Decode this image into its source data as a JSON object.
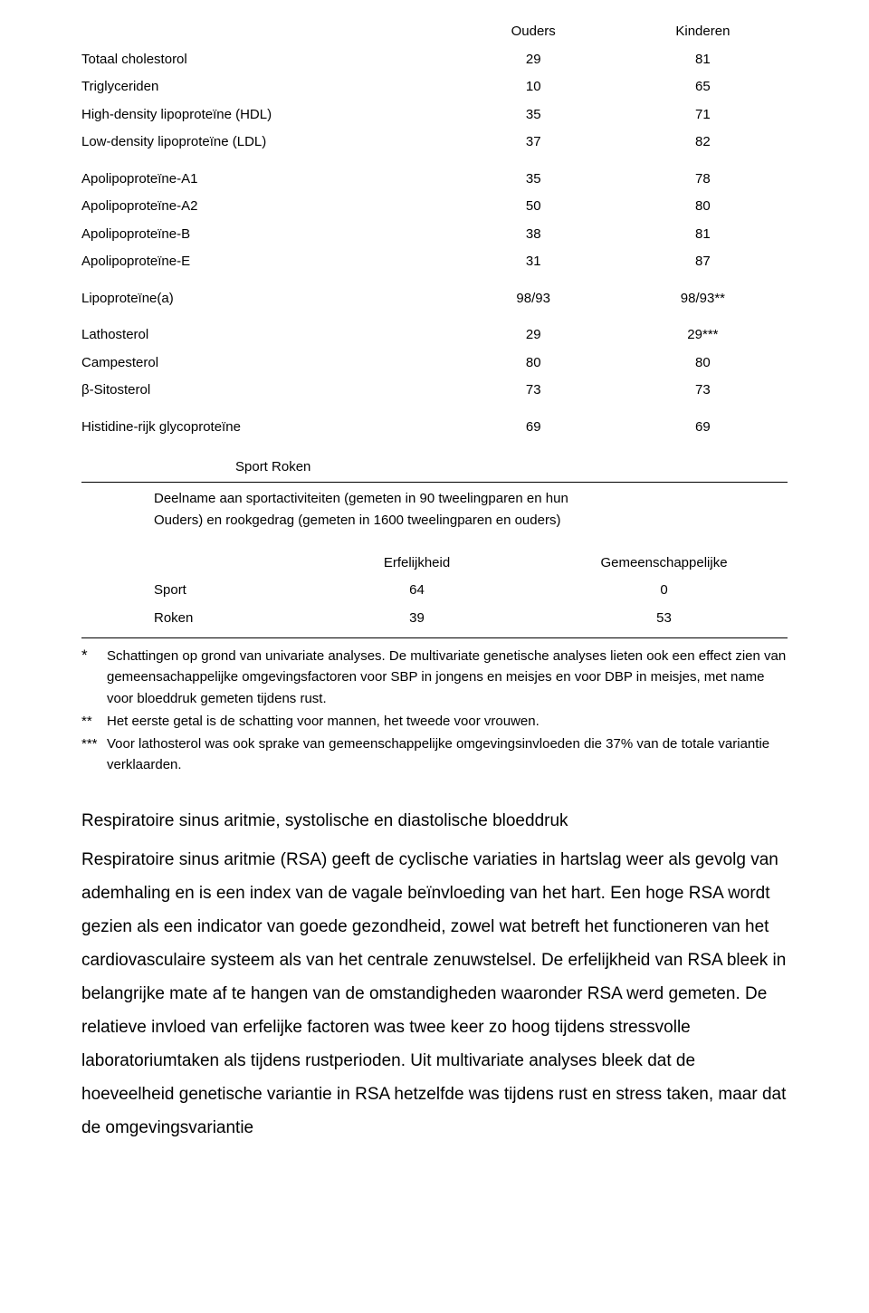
{
  "table1": {
    "headers": {
      "col1": "Ouders",
      "col2": "Kinderen"
    },
    "groups": [
      {
        "rows": [
          {
            "label": "Totaal cholestorol",
            "v1": "29",
            "v2": "81"
          },
          {
            "label": "Triglyceriden",
            "v1": "10",
            "v2": "65"
          },
          {
            "label": "High-density lipoproteïne (HDL)",
            "v1": "35",
            "v2": "71"
          },
          {
            "label": "Low-density lipoproteïne (LDL)",
            "v1": "37",
            "v2": "82"
          }
        ]
      },
      {
        "rows": [
          {
            "label": "Apolipoproteïne-A1",
            "v1": "35",
            "v2": "78"
          },
          {
            "label": "Apolipoproteïne-A2",
            "v1": "50",
            "v2": "80"
          },
          {
            "label": "Apolipoproteïne-B",
            "v1": "38",
            "v2": "81"
          },
          {
            "label": "Apolipoproteïne-E",
            "v1": "31",
            "v2": "87"
          }
        ]
      },
      {
        "rows": [
          {
            "label": "Lipoproteïne(a)",
            "v1": "98/93",
            "v2": "98/93**"
          }
        ]
      },
      {
        "rows": [
          {
            "label": "Lathosterol",
            "v1": "29",
            "v2": "29***"
          },
          {
            "label": "Campesterol",
            "v1": "80",
            "v2": "80"
          },
          {
            "label": "β-Sitosterol",
            "v1": "73",
            "v2": "73"
          }
        ]
      },
      {
        "rows": [
          {
            "label": "Histidine-rijk glycoproteïne",
            "v1": "69",
            "v2": "69"
          }
        ]
      }
    ]
  },
  "section2": {
    "header": "Sport   Roken",
    "desc1": "Deelname aan sportactiviteiten (gemeten in 90 tweelingparen en hun",
    "desc2": "Ouders) en rookgedrag (gemeten in 1600 tweelingparen en ouders)"
  },
  "table2": {
    "headers": {
      "c1": "Erfelijkheid",
      "c2": "Gemeenschappelijke"
    },
    "rows": [
      {
        "label": "Sport",
        "v1": "64",
        "v2": "0"
      },
      {
        "label": "Roken",
        "v1": "39",
        "v2": "53"
      }
    ]
  },
  "footnotes": {
    "n1": {
      "star": "*",
      "text": "Schattingen op grond van univariate analyses. De multivariate genetische analyses lieten ook een effect zien van gemeensachappelijke omgevingsfactoren voor SBP in jongens en meisjes en voor DBP in meisjes, met name voor bloeddruk gemeten tijdens rust."
    },
    "n2": {
      "star": "**",
      "text": "Het eerste getal is de schatting voor mannen, het tweede voor vrouwen."
    },
    "n3": {
      "star": "***",
      "text": "Voor lathosterol was ook sprake van gemeenschappelijke omgevingsinvloeden die 37% van de totale variantie verklaarden."
    }
  },
  "body": {
    "heading": "Respiratoire sinus aritmie, systolische en diastolische bloeddruk",
    "paragraph": "Respiratoire sinus aritmie (RSA) geeft de cyclische variaties in hartslag weer als gevolg van ademhaling en is een index van de vagale beïnvloeding van het hart. Een hoge RSA wordt gezien als een indicator van goede gezondheid, zowel wat betreft het functioneren van het cardiovasculaire systeem als van het centrale zenuwstelsel. De erfelijkheid van RSA bleek in belangrijke mate af te hangen van de omstandigheden waaronder RSA werd gemeten. De relatieve invloed van erfelijke factoren was twee keer zo hoog tijdens stressvolle laboratoriumtaken als tijdens rustperioden. Uit multivariate analyses bleek dat de hoeveelheid genetische variantie in RSA hetzelfde was tijdens rust en stress taken, maar dat de omgevingsvariantie"
  }
}
